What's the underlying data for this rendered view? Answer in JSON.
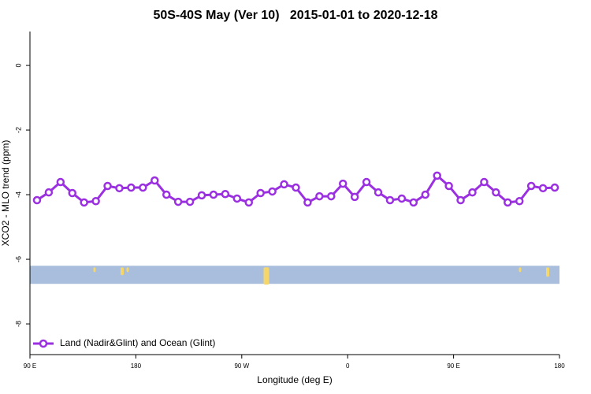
{
  "chart_data": {
    "type": "line",
    "title": "50S-40S May (Ver 10)   2015-01-01 to 2020-12-18",
    "xlabel": "Longitude (deg E)",
    "ylabel": "XCO2 - MLO trend (ppm)",
    "xlim": [
      90,
      540
    ],
    "xticks": [
      {
        "value": 90,
        "label": "90 E"
      },
      180,
      {
        "value": 270,
        "label": "90 W"
      },
      {
        "value": 360,
        "label": "0"
      },
      {
        "value": 450,
        "label": "90 E"
      },
      {
        "value": 540,
        "label": "180"
      }
    ],
    "ylim": [
      -8.95,
      1.05
    ],
    "yticks": [
      0,
      -2,
      -4,
      -6,
      -8
    ],
    "legend": "bottom-left",
    "band": {
      "ylim": [
        -6.2,
        -6.76
      ],
      "color": "#a8bedc",
      "land_color": "#f5d66b"
    },
    "x": [
      96,
      106,
      116,
      126,
      136,
      146,
      156,
      166,
      176,
      186,
      196,
      206,
      216,
      226,
      236,
      246,
      256,
      266,
      276,
      286,
      296,
      306,
      316,
      326,
      336,
      346,
      356,
      366,
      376,
      386,
      396,
      406,
      416,
      426,
      436,
      446,
      456,
      466,
      476,
      486,
      496,
      506,
      516,
      526,
      536
    ],
    "series": [
      {
        "name": "Land (Nadir&Glint) and Ocean (Glint)",
        "color": "#9b30e0",
        "values": [
          -4.17,
          -3.93,
          -3.61,
          -3.95,
          -4.24,
          -4.2,
          -3.73,
          -3.8,
          -3.78,
          -3.78,
          -3.56,
          -4.0,
          -4.22,
          -4.22,
          -4.02,
          -4.0,
          -3.98,
          -4.12,
          -4.24,
          -3.95,
          -3.9,
          -3.68,
          -3.78,
          -4.24,
          -4.05,
          -4.05,
          -3.66,
          -4.07,
          -3.61,
          -3.93,
          -4.17,
          -4.12,
          -4.24,
          -4.0,
          -3.41,
          -3.73,
          -4.17,
          -3.93,
          -3.61,
          -3.93,
          -4.24,
          -4.2,
          -3.73,
          -3.8,
          -3.78
        ]
      }
    ]
  }
}
